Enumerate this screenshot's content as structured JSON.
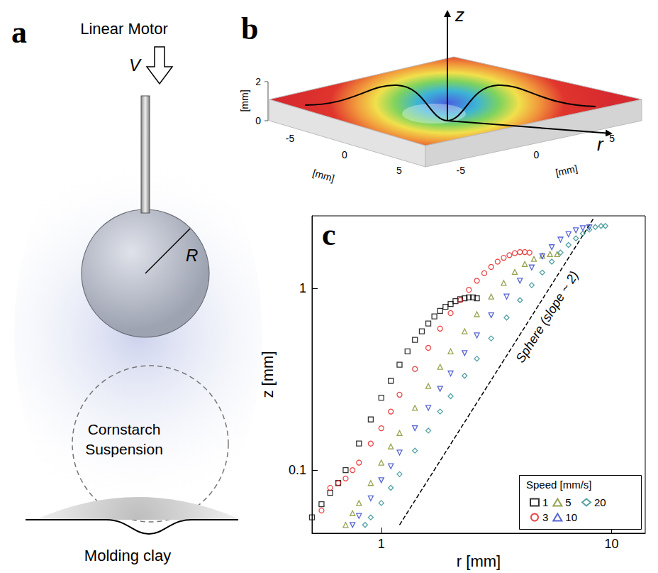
{
  "panel_a": {
    "label": "a",
    "motor": "Linear Motor",
    "speed": "V",
    "radius": "R",
    "suspension": "Cornstarch Suspension",
    "substrate": "Molding clay"
  },
  "panel_b": {
    "label": "b",
    "z_axis": "z",
    "r_axis": "r",
    "unit": "[mm]",
    "x_ticks": [
      -5,
      0,
      5
    ],
    "y_ticks": [
      -5,
      0,
      5
    ],
    "z_ticks": [
      0,
      2
    ]
  },
  "chart_data": {
    "type": "scatter",
    "label": "c",
    "xlabel": "r [mm]",
    "ylabel": "z [mm]",
    "log": true,
    "grid": false,
    "xlim": [
      0.5,
      14
    ],
    "ylim": [
      0.045,
      2.5
    ],
    "xticks": [
      1,
      10
    ],
    "yticks": [
      0.1,
      1
    ],
    "legend": "lower right",
    "legend_title": "Speed [mm/s]",
    "series": [
      {
        "name": "1",
        "color": "#000000",
        "marker": "square",
        "x": [
          0.5,
          0.55,
          0.6,
          0.65,
          0.7,
          0.8,
          0.9,
          1.0,
          1.1,
          1.2,
          1.3,
          1.4,
          1.5,
          1.6,
          1.7,
          1.8,
          1.9,
          2.0,
          2.1,
          2.2,
          2.3,
          2.4,
          2.5,
          2.6
        ],
        "values": [
          0.055,
          0.065,
          0.075,
          0.085,
          0.1,
          0.14,
          0.19,
          0.25,
          0.31,
          0.38,
          0.45,
          0.52,
          0.58,
          0.64,
          0.7,
          0.75,
          0.79,
          0.82,
          0.85,
          0.87,
          0.88,
          0.89,
          0.89,
          0.88
        ]
      },
      {
        "name": "3",
        "color": "#e4191c",
        "marker": "circle",
        "x": [
          0.55,
          0.6,
          0.65,
          0.7,
          0.75,
          0.8,
          0.9,
          1.0,
          1.1,
          1.2,
          1.4,
          1.6,
          1.8,
          2.0,
          2.2,
          2.4,
          2.6,
          2.8,
          3.0,
          3.2,
          3.4,
          3.6,
          3.8,
          4.0,
          4.2,
          4.4
        ],
        "values": [
          0.06,
          0.08,
          0.085,
          0.09,
          0.1,
          0.11,
          0.14,
          0.17,
          0.21,
          0.26,
          0.36,
          0.47,
          0.6,
          0.73,
          0.86,
          0.98,
          1.1,
          1.21,
          1.31,
          1.4,
          1.47,
          1.52,
          1.56,
          1.58,
          1.58,
          1.57
        ]
      },
      {
        "name": "5",
        "color": "#7d8c24",
        "marker": "triangle-up",
        "x": [
          0.7,
          0.75,
          0.8,
          0.9,
          1.0,
          1.1,
          1.2,
          1.4,
          1.6,
          1.8,
          2.0,
          2.3,
          2.6,
          3.0,
          3.4,
          3.8,
          4.2,
          4.6,
          5.0,
          5.4,
          5.8
        ],
        "values": [
          0.05,
          0.058,
          0.066,
          0.085,
          0.11,
          0.135,
          0.16,
          0.22,
          0.29,
          0.37,
          0.45,
          0.58,
          0.72,
          0.9,
          1.07,
          1.23,
          1.36,
          1.45,
          1.51,
          1.54,
          1.54
        ]
      },
      {
        "name": "10",
        "color": "#2d3ec8",
        "marker": "triangle-down",
        "x": [
          0.75,
          0.8,
          0.9,
          1.0,
          1.1,
          1.2,
          1.4,
          1.6,
          1.8,
          2.0,
          2.3,
          2.6,
          3.0,
          3.5,
          4.0,
          4.5,
          5.0,
          5.5,
          6.0,
          6.5,
          7.0,
          7.5,
          8.0
        ],
        "values": [
          0.05,
          0.056,
          0.07,
          0.088,
          0.105,
          0.125,
          0.17,
          0.22,
          0.28,
          0.34,
          0.44,
          0.55,
          0.71,
          0.9,
          1.1,
          1.3,
          1.5,
          1.68,
          1.85,
          1.98,
          2.08,
          2.14,
          2.16
        ]
      },
      {
        "name": "20",
        "color": "#2b8a8f",
        "marker": "diamond",
        "x": [
          0.85,
          0.9,
          1.0,
          1.1,
          1.2,
          1.4,
          1.6,
          1.8,
          2.0,
          2.3,
          2.6,
          3.0,
          3.5,
          4.0,
          4.5,
          5.0,
          5.5,
          6.0,
          6.5,
          7.0,
          7.5,
          8.0,
          8.5,
          9.0,
          9.4
        ],
        "values": [
          0.05,
          0.055,
          0.066,
          0.08,
          0.095,
          0.128,
          0.165,
          0.21,
          0.255,
          0.33,
          0.41,
          0.53,
          0.69,
          0.86,
          1.04,
          1.22,
          1.4,
          1.57,
          1.73,
          1.88,
          2.0,
          2.1,
          2.17,
          2.2,
          2.2
        ]
      }
    ],
    "reference_line": {
      "label": "Sphere (slope ~ 2)",
      "x": [
        1.2,
        8.4
      ],
      "values": [
        0.05,
        2.45
      ],
      "color": "#000000",
      "line_style": "dashed"
    }
  }
}
